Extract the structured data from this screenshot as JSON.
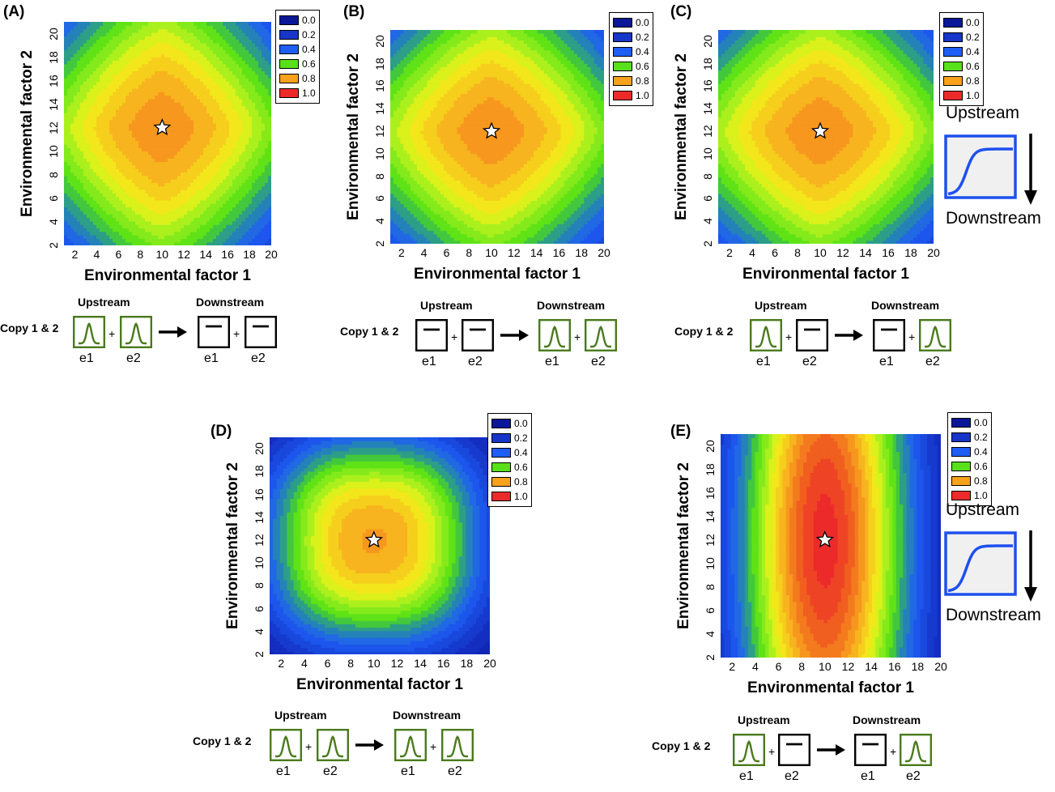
{
  "colors": {
    "blue_deep": "#0b1fb0",
    "blue_mid": "#1a3fd0",
    "blue": "#1e5ef5",
    "green": "#50e012",
    "yellow": "#f2f21a",
    "orange": "#f7a21a",
    "red": "#ec2a2a",
    "schematic_green": "#4a7a1c",
    "sigmoid_blue": "#1e50ee"
  },
  "legend": [
    {
      "label": "0.0",
      "color": "#0a1898"
    },
    {
      "label": "0.2",
      "color": "#1735c8"
    },
    {
      "label": "0.4",
      "color": "#1e5ef5"
    },
    {
      "label": "0.6",
      "color": "#58e01a"
    },
    {
      "label": "0.8",
      "color": "#f7a21a"
    },
    {
      "label": "1.0",
      "color": "#ec2a2a"
    }
  ],
  "common": {
    "xlabel": "Environmental factor 1",
    "ylabel": "Environmental factor 2",
    "xticks": [
      "2",
      "4",
      "6",
      "8",
      "10",
      "12",
      "14",
      "16",
      "18",
      "20"
    ],
    "yticks": [
      "2",
      "4",
      "6",
      "8",
      "10",
      "12",
      "14",
      "16",
      "18",
      "20"
    ],
    "upstream": "Upstream",
    "downstream": "Downstream",
    "copy_label": "Copy 1 & 2",
    "e1": "e1",
    "e2": "e2",
    "plus": "+"
  },
  "chart_data": [
    {
      "panel": "(A)",
      "type": "heatmap",
      "xlim": [
        1,
        20
      ],
      "ylim": [
        2,
        21
      ],
      "optimum": [
        10,
        12
      ],
      "optimum_value": 0.8,
      "shape": "diamond-broad",
      "upstream_boxes": [
        "gaussian",
        "gaussian"
      ],
      "downstream_boxes": [
        "flat",
        "flat"
      ]
    },
    {
      "panel": "(B)",
      "type": "heatmap",
      "xlim": [
        1,
        20
      ],
      "ylim": [
        2,
        21
      ],
      "optimum": [
        10,
        12
      ],
      "optimum_value": 0.8,
      "shape": "diamond-broad",
      "upstream_boxes": [
        "flat",
        "flat"
      ],
      "downstream_boxes": [
        "gaussian",
        "gaussian"
      ]
    },
    {
      "panel": "(C)",
      "type": "heatmap",
      "xlim": [
        1,
        20
      ],
      "ylim": [
        2,
        21
      ],
      "optimum": [
        10,
        12
      ],
      "optimum_value": 0.8,
      "shape": "diamond-broad",
      "upstream_boxes": [
        "gaussian",
        "flat"
      ],
      "downstream_boxes": [
        "flat",
        "gaussian"
      ],
      "side_sigmoid": true
    },
    {
      "panel": "(D)",
      "type": "heatmap",
      "xlim": [
        1,
        20
      ],
      "ylim": [
        2,
        21
      ],
      "optimum": [
        10,
        12
      ],
      "optimum_value": 0.8,
      "shape": "rounded-narrow",
      "upstream_boxes": [
        "gaussian",
        "gaussian"
      ],
      "downstream_boxes": [
        "gaussian",
        "gaussian"
      ]
    },
    {
      "panel": "(E)",
      "type": "heatmap",
      "xlim": [
        1,
        20
      ],
      "ylim": [
        2,
        21
      ],
      "optimum": [
        10,
        12
      ],
      "optimum_value": 1.0,
      "shape": "vertical-ellipse",
      "upstream_boxes": [
        "gaussian",
        "flat"
      ],
      "downstream_boxes": [
        "flat",
        "gaussian"
      ],
      "side_sigmoid": true
    }
  ]
}
